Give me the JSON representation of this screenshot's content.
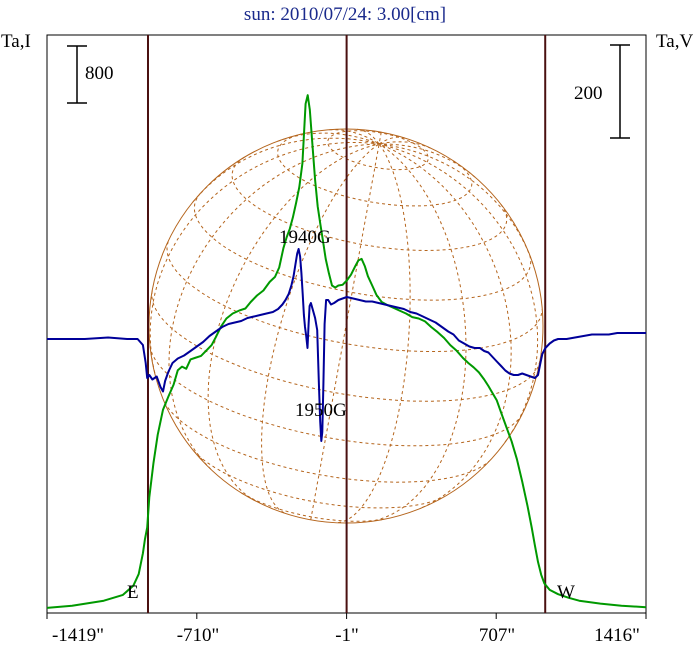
{
  "chart_data": {
    "type": "line",
    "title": "sun: 2010/07/24: 3.00[cm]",
    "left_axis_label": "Ta,I",
    "right_axis_label": "Ta,V",
    "left_scale_bar_label": "800",
    "right_scale_bar_label": "200",
    "x_tick_labels": [
      "-1419\"",
      "-710\"",
      "-1\"",
      "707\"",
      "1416\""
    ],
    "x_tick_values": [
      -1419,
      -710,
      -1,
      707,
      1416
    ],
    "xlim": [
      -1419,
      1416
    ],
    "limb_markers": [
      {
        "label": "E",
        "x": -941
      },
      {
        "label": "W",
        "x": 939
      }
    ],
    "annotations": [
      {
        "text": "1940G",
        "x": -180
      },
      {
        "text": "1950G",
        "x": -115
      }
    ],
    "series": [
      {
        "color": "#009900",
        "points": [
          [
            -1419,
            -0.04
          ],
          [
            -1300,
            -0.01
          ],
          [
            -1150,
            0.06
          ],
          [
            -1060,
            0.14
          ],
          [
            -1010,
            0.27
          ],
          [
            -985,
            0.43
          ],
          [
            -965,
            0.72
          ],
          [
            -955,
            0.92
          ],
          [
            -945,
            1.08
          ],
          [
            -935,
            1.5
          ],
          [
            -915,
            1.98
          ],
          [
            -895,
            2.37
          ],
          [
            -870,
            2.72
          ],
          [
            -845,
            2.9
          ],
          [
            -820,
            3.07
          ],
          [
            -800,
            3.27
          ],
          [
            -780,
            3.32
          ],
          [
            -760,
            3.29
          ],
          [
            -740,
            3.42
          ],
          [
            -720,
            3.44
          ],
          [
            -690,
            3.47
          ],
          [
            -660,
            3.56
          ],
          [
            -640,
            3.62
          ],
          [
            -620,
            3.73
          ],
          [
            -595,
            3.88
          ],
          [
            -570,
            3.99
          ],
          [
            -540,
            4.06
          ],
          [
            -510,
            4.1
          ],
          [
            -480,
            4.13
          ],
          [
            -455,
            4.22
          ],
          [
            -425,
            4.31
          ],
          [
            -395,
            4.38
          ],
          [
            -365,
            4.5
          ],
          [
            -340,
            4.57
          ],
          [
            -320,
            4.7
          ],
          [
            -300,
            4.97
          ],
          [
            -285,
            5.12
          ],
          [
            -270,
            5.24
          ],
          [
            -255,
            5.4
          ],
          [
            -240,
            5.6
          ],
          [
            -225,
            5.82
          ],
          [
            -210,
            6.15
          ],
          [
            -195,
            6.98
          ],
          [
            -185,
            7.1
          ],
          [
            -175,
            6.9
          ],
          [
            -162,
            6.38
          ],
          [
            -150,
            5.92
          ],
          [
            -138,
            5.55
          ],
          [
            -125,
            5.3
          ],
          [
            -112,
            5.05
          ],
          [
            -100,
            4.82
          ],
          [
            -85,
            4.62
          ],
          [
            -70,
            4.45
          ],
          [
            -55,
            4.42
          ],
          [
            -40,
            4.45
          ],
          [
            -20,
            4.46
          ],
          [
            0,
            4.52
          ],
          [
            20,
            4.6
          ],
          [
            40,
            4.72
          ],
          [
            55,
            4.8
          ],
          [
            70,
            4.82
          ],
          [
            85,
            4.72
          ],
          [
            100,
            4.58
          ],
          [
            120,
            4.45
          ],
          [
            140,
            4.32
          ],
          [
            165,
            4.22
          ],
          [
            190,
            4.18
          ],
          [
            220,
            4.14
          ],
          [
            250,
            4.1
          ],
          [
            280,
            4.06
          ],
          [
            310,
            4.01
          ],
          [
            340,
            3.99
          ],
          [
            370,
            3.95
          ],
          [
            400,
            3.87
          ],
          [
            430,
            3.8
          ],
          [
            460,
            3.72
          ],
          [
            490,
            3.62
          ],
          [
            520,
            3.54
          ],
          [
            550,
            3.44
          ],
          [
            575,
            3.37
          ],
          [
            600,
            3.31
          ],
          [
            625,
            3.24
          ],
          [
            650,
            3.14
          ],
          [
            670,
            3.05
          ],
          [
            690,
            2.95
          ],
          [
            710,
            2.85
          ],
          [
            730,
            2.68
          ],
          [
            755,
            2.48
          ],
          [
            780,
            2.28
          ],
          [
            805,
            2.03
          ],
          [
            830,
            1.72
          ],
          [
            855,
            1.38
          ],
          [
            875,
            1.08
          ],
          [
            890,
            0.83
          ],
          [
            905,
            0.6
          ],
          [
            920,
            0.42
          ],
          [
            935,
            0.3
          ],
          [
            960,
            0.21
          ],
          [
            1000,
            0.15
          ],
          [
            1050,
            0.1
          ],
          [
            1100,
            0.06
          ],
          [
            1200,
            0.02
          ],
          [
            1300,
            -0.01
          ],
          [
            1416,
            -0.03
          ]
        ]
      },
      {
        "color": "#000099",
        "points": [
          [
            -1419,
            0
          ],
          [
            -1340,
            0
          ],
          [
            -1240,
            0
          ],
          [
            -1130,
            0.01
          ],
          [
            -1040,
            0
          ],
          [
            -990,
            0
          ],
          [
            -965,
            -0.04
          ],
          [
            -952,
            -0.16
          ],
          [
            -945,
            -0.26
          ],
          [
            -935,
            -0.24
          ],
          [
            -920,
            -0.27
          ],
          [
            -900,
            -0.25
          ],
          [
            -882,
            -0.32
          ],
          [
            -870,
            -0.35
          ],
          [
            -860,
            -0.28
          ],
          [
            -845,
            -0.22
          ],
          [
            -825,
            -0.16
          ],
          [
            -800,
            -0.13
          ],
          [
            -770,
            -0.11
          ],
          [
            -740,
            -0.08
          ],
          [
            -710,
            -0.05
          ],
          [
            -680,
            -0.02
          ],
          [
            -650,
            0.02
          ],
          [
            -620,
            0.05
          ],
          [
            -590,
            0.08
          ],
          [
            -560,
            0.1
          ],
          [
            -530,
            0.11
          ],
          [
            -500,
            0.12
          ],
          [
            -470,
            0.14
          ],
          [
            -440,
            0.15
          ],
          [
            -410,
            0.16
          ],
          [
            -380,
            0.17
          ],
          [
            -350,
            0.18
          ],
          [
            -325,
            0.2
          ],
          [
            -305,
            0.23
          ],
          [
            -290,
            0.26
          ],
          [
            -275,
            0.3
          ],
          [
            -262,
            0.36
          ],
          [
            -252,
            0.42
          ],
          [
            -243,
            0.5
          ],
          [
            -235,
            0.57
          ],
          [
            -228,
            0.6
          ],
          [
            -221,
            0.55
          ],
          [
            -215,
            0.44
          ],
          [
            -209,
            0.3
          ],
          [
            -203,
            0.16
          ],
          [
            -198,
            0.08
          ],
          [
            -192,
            0.02
          ],
          [
            -186,
            -0.06
          ],
          [
            -181,
            0.1
          ],
          [
            -176,
            0.22
          ],
          [
            -170,
            0.24
          ],
          [
            -162,
            0.2
          ],
          [
            -150,
            0.14
          ],
          [
            -140,
            0.06
          ],
          [
            -132,
            -0.3
          ],
          [
            -126,
            -0.55
          ],
          [
            -121,
            -0.68
          ],
          [
            -116,
            -0.62
          ],
          [
            -111,
            -0.3
          ],
          [
            -105,
            0.1
          ],
          [
            -98,
            0.26
          ],
          [
            -88,
            0.26
          ],
          [
            -75,
            0.23
          ],
          [
            -60,
            0.24
          ],
          [
            -40,
            0.26
          ],
          [
            -20,
            0.27
          ],
          [
            0,
            0.28
          ],
          [
            30,
            0.27
          ],
          [
            60,
            0.26
          ],
          [
            90,
            0.25
          ],
          [
            120,
            0.25
          ],
          [
            150,
            0.24
          ],
          [
            180,
            0.23
          ],
          [
            210,
            0.22
          ],
          [
            240,
            0.21
          ],
          [
            270,
            0.2
          ],
          [
            300,
            0.18
          ],
          [
            330,
            0.17
          ],
          [
            360,
            0.15
          ],
          [
            390,
            0.13
          ],
          [
            420,
            0.11
          ],
          [
            450,
            0.08
          ],
          [
            480,
            0.05
          ],
          [
            505,
            0.03
          ],
          [
            530,
            -0.01
          ],
          [
            555,
            -0.03
          ],
          [
            580,
            -0.05
          ],
          [
            605,
            -0.06
          ],
          [
            630,
            -0.06
          ],
          [
            650,
            -0.08
          ],
          [
            670,
            -0.09
          ],
          [
            690,
            -0.12
          ],
          [
            710,
            -0.15
          ],
          [
            730,
            -0.18
          ],
          [
            750,
            -0.21
          ],
          [
            770,
            -0.23
          ],
          [
            790,
            -0.24
          ],
          [
            810,
            -0.24
          ],
          [
            830,
            -0.23
          ],
          [
            850,
            -0.24
          ],
          [
            870,
            -0.25
          ],
          [
            890,
            -0.26
          ],
          [
            905,
            -0.24
          ],
          [
            915,
            -0.17
          ],
          [
            925,
            -0.1
          ],
          [
            940,
            -0.06
          ],
          [
            960,
            -0.03
          ],
          [
            980,
            -0.01
          ],
          [
            1000,
            0
          ],
          [
            1040,
            0
          ],
          [
            1080,
            0.01
          ],
          [
            1120,
            0.02
          ],
          [
            1160,
            0.03
          ],
          [
            1200,
            0.03
          ],
          [
            1240,
            0.03
          ],
          [
            1280,
            0.04
          ],
          [
            1320,
            0.04
          ],
          [
            1360,
            0.04
          ],
          [
            1416,
            0.04
          ]
        ]
      }
    ]
  }
}
